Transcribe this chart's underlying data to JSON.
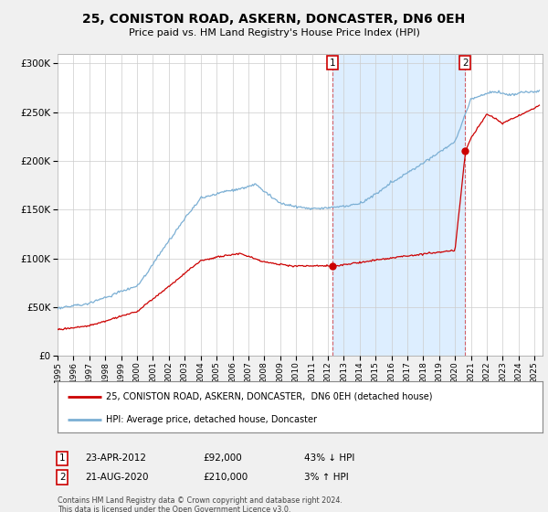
{
  "title": "25, CONISTON ROAD, ASKERN, DONCASTER, DN6 0EH",
  "subtitle": "Price paid vs. HM Land Registry's House Price Index (HPI)",
  "legend_line1": "25, CONISTON ROAD, ASKERN, DONCASTER,  DN6 0EH (detached house)",
  "legend_line2": "HPI: Average price, detached house, Doncaster",
  "sale1_date": "23-APR-2012",
  "sale1_price": "£92,000",
  "sale1_hpi": "43% ↓ HPI",
  "sale2_date": "21-AUG-2020",
  "sale2_price": "£210,000",
  "sale2_hpi": "3% ↑ HPI",
  "footer": "Contains HM Land Registry data © Crown copyright and database right 2024.\nThis data is licensed under the Open Government Licence v3.0.",
  "hpi_color": "#7bafd4",
  "price_color": "#cc0000",
  "background_color": "#f0f0f0",
  "plot_bg_color": "#ffffff",
  "grid_color": "#cccccc",
  "shade_color": "#ddeeff",
  "ylim": [
    0,
    310000
  ],
  "yticks": [
    0,
    50000,
    100000,
    150000,
    200000,
    250000,
    300000
  ],
  "sale1_x": 2012.31,
  "sale1_y": 92000,
  "sale2_x": 2020.64,
  "sale2_y": 210000,
  "xmin": 1995,
  "xmax": 2025.5
}
